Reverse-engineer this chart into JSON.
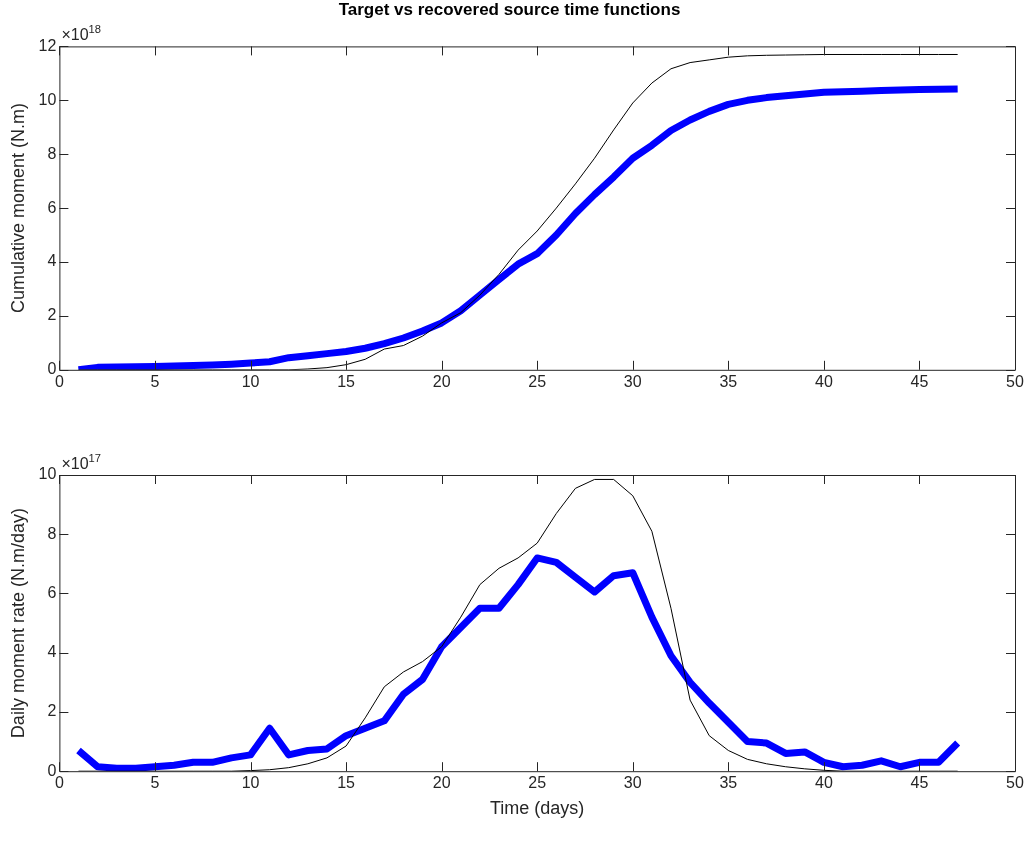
{
  "chart_data": [
    {
      "type": "line",
      "title": "Target vs recovered source time functions",
      "ylabel": "Cumulative moment (N.m)",
      "annotations": [
        "×10$^{18}$"
      ],
      "x": [
        1,
        2,
        3,
        4,
        5,
        6,
        7,
        8,
        9,
        10,
        11,
        12,
        13,
        14,
        15,
        16,
        17,
        18,
        19,
        20,
        21,
        22,
        23,
        24,
        25,
        26,
        27,
        28,
        29,
        30,
        31,
        32,
        33,
        34,
        35,
        36,
        37,
        38,
        39,
        40,
        41,
        42,
        43,
        44,
        45,
        46,
        47
      ],
      "series": [
        {
          "color": "#000000",
          "values": [
            0,
            0,
            0,
            0,
            0,
            0,
            0,
            0,
            0,
            0,
            0,
            0,
            0.03,
            0.08,
            0.19,
            0.39,
            0.77,
            0.9,
            1.25,
            1.74,
            2.12,
            2.77,
            3.54,
            4.44,
            5.15,
            6.0,
            6.9,
            7.85,
            8.9,
            9.9,
            10.64,
            11.17,
            11.4,
            11.5,
            11.6,
            11.65,
            11.67,
            11.68,
            11.69,
            11.7,
            11.7,
            11.7,
            11.7,
            11.7,
            11.7,
            11.7,
            11.7
          ]
        },
        {
          "color": "#0000ff",
          "values": [
            0,
            0.09,
            0.1,
            0.11,
            0.12,
            0.14,
            0.16,
            0.18,
            0.21,
            0.25,
            0.3,
            0.45,
            0.52,
            0.6,
            0.68,
            0.8,
            0.97,
            1.18,
            1.44,
            1.74,
            2.19,
            2.77,
            3.35,
            3.92,
            4.31,
            5.0,
            5.8,
            6.5,
            7.15,
            7.85,
            8.33,
            8.88,
            9.27,
            9.59,
            9.85,
            10.0,
            10.1,
            10.17,
            10.23,
            10.3,
            10.32,
            10.34,
            10.36,
            10.38,
            10.4,
            10.41,
            10.42
          ]
        }
      ],
      "xlim": [
        0,
        50
      ],
      "xticks": [
        0,
        5,
        10,
        15,
        20,
        25,
        30,
        35,
        40,
        45,
        50
      ],
      "ylim": [
        0,
        12
      ],
      "yticks": [
        0,
        2,
        4,
        6,
        8,
        10,
        12
      ],
      "grid": false,
      "legend": false
    },
    {
      "type": "line",
      "xlabel": "Time (days)",
      "ylabel": "Daily moment rate (N.m/day)",
      "annotations": [
        "×10$^{17}$"
      ],
      "x": [
        1,
        2,
        3,
        4,
        5,
        6,
        7,
        8,
        9,
        10,
        11,
        12,
        13,
        14,
        15,
        16,
        17,
        18,
        19,
        20,
        21,
        22,
        23,
        24,
        25,
        26,
        27,
        28,
        29,
        30,
        31,
        32,
        33,
        34,
        35,
        36,
        37,
        38,
        39,
        40,
        41,
        42,
        43,
        44,
        45,
        46,
        47
      ],
      "series": [
        {
          "color": "#000000",
          "values": [
            0,
            0,
            0,
            0,
            0,
            0,
            0,
            0,
            0,
            0.02,
            0.05,
            0.12,
            0.25,
            0.45,
            0.85,
            1.8,
            2.85,
            3.35,
            3.7,
            4.2,
            5.2,
            6.3,
            6.85,
            7.2,
            7.7,
            8.7,
            9.55,
            9.85,
            9.85,
            9.3,
            8.1,
            5.5,
            2.4,
            1.2,
            0.7,
            0.4,
            0.25,
            0.15,
            0.08,
            0.03,
            0,
            0,
            0,
            0,
            0,
            0,
            0
          ]
        },
        {
          "color": "#0000ff",
          "values": [
            0.7,
            0.15,
            0.1,
            0.1,
            0.15,
            0.2,
            0.3,
            0.3,
            0.45,
            0.55,
            1.45,
            0.55,
            0.7,
            0.75,
            1.2,
            1.45,
            1.7,
            2.6,
            3.1,
            4.2,
            4.85,
            5.5,
            5.5,
            6.3,
            7.2,
            7.05,
            6.55,
            6.05,
            6.6,
            6.7,
            5.2,
            3.9,
            3.0,
            2.3,
            1.65,
            1.0,
            0.95,
            0.6,
            0.65,
            0.3,
            0.15,
            0.2,
            0.35,
            0.15,
            0.3,
            0.3,
            0.95
          ]
        }
      ],
      "xlim": [
        0,
        50
      ],
      "xticks": [
        0,
        5,
        10,
        15,
        20,
        25,
        30,
        35,
        40,
        45,
        50
      ],
      "ylim": [
        0,
        10
      ],
      "yticks": [
        0,
        2,
        4,
        6,
        8,
        10
      ],
      "grid": false,
      "legend": false
    }
  ]
}
